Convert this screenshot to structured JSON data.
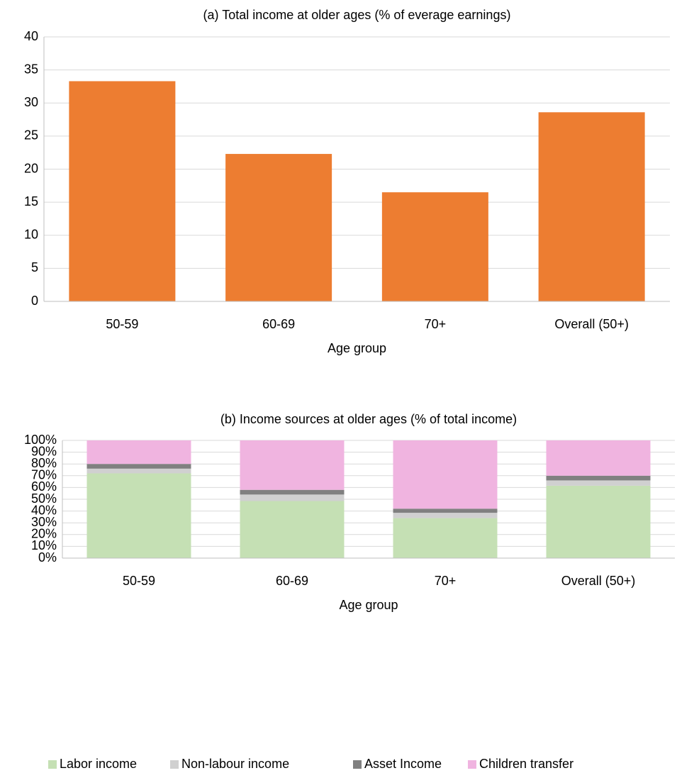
{
  "chart_data": [
    {
      "type": "bar",
      "title": "(a) Total income at older ages (% of everage earnings)",
      "x_label": "Age group",
      "categories": [
        "50-59",
        "60-69",
        "70+",
        "Overall (50+)"
      ],
      "values": [
        33.3,
        22.3,
        16.5,
        28.6
      ],
      "color": "#ed7d31",
      "ylim": [
        0,
        40
      ],
      "yticks": [
        0,
        5,
        10,
        15,
        20,
        25,
        30,
        35,
        40
      ],
      "grid": true
    },
    {
      "type": "stacked_bar",
      "title": "(b) Income sources at older ages (% of total income)",
      "x_label": "Age group",
      "categories": [
        "50-59",
        "60-69",
        "70+",
        "Overall (50+)"
      ],
      "series": [
        {
          "name": "Labor income",
          "color": "#c5e0b4",
          "values": [
            72,
            48.5,
            34,
            61.5
          ]
        },
        {
          "name": "Non-labour income",
          "color": "#d0d0d0",
          "values": [
            4,
            5.5,
            4.5,
            4.5
          ]
        },
        {
          "name": "Asset Income",
          "color": "#808080",
          "values": [
            4,
            4,
            3.5,
            4
          ]
        },
        {
          "name": "Children transfer",
          "color": "#f0b4e0",
          "values": [
            20,
            42,
            58,
            30
          ]
        }
      ],
      "ylim": [
        0,
        100
      ],
      "yticks": [
        {
          "value": 0,
          "label": "0%"
        },
        {
          "value": 10,
          "label": "10%"
        },
        {
          "value": 20,
          "label": "20%"
        },
        {
          "value": 30,
          "label": "30%"
        },
        {
          "value": 40,
          "label": "40%"
        },
        {
          "value": 50,
          "label": "50%"
        },
        {
          "value": 60,
          "label": "60%"
        },
        {
          "value": 70,
          "label": "70%"
        },
        {
          "value": 80,
          "label": "80%"
        },
        {
          "value": 90,
          "label": "90%"
        },
        {
          "value": 100,
          "label": "100%"
        }
      ],
      "grid": true,
      "legend": "bottom"
    }
  ]
}
